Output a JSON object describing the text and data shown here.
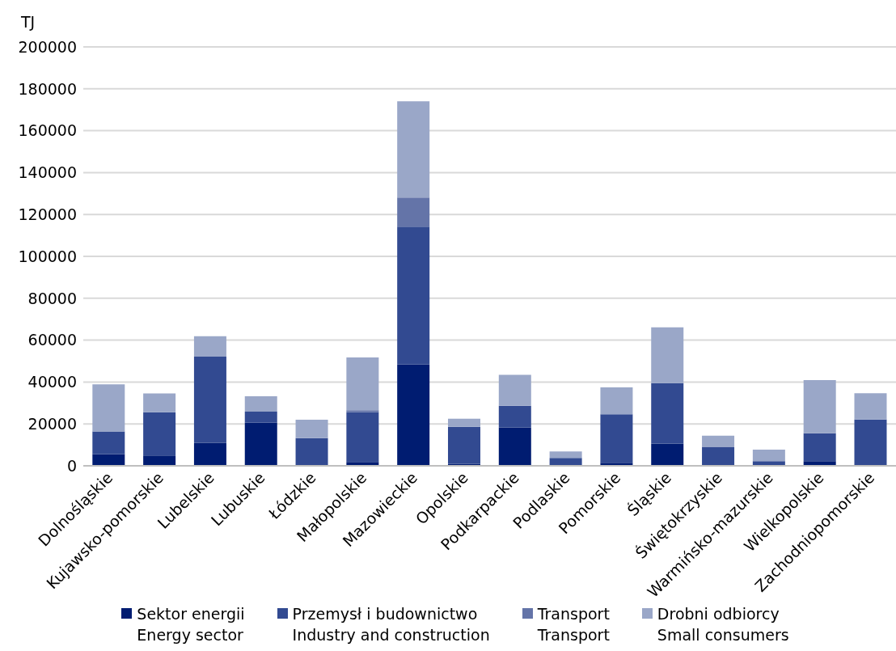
{
  "chart_data": {
    "type": "bar",
    "stacked": true,
    "ylabel": "TJ",
    "categories": [
      "Dolnośląskie",
      "Kujawsko-pomorskie",
      "Lubelskie",
      "Lubuskie",
      "Łódzkie",
      "Małopolskie",
      "Mazowieckie",
      "Opolskie",
      "Podkarpackie",
      "Podlaskie",
      "Pomorskie",
      "Śląskie",
      "Świętokrzyskie",
      "Warmińsko-mazurskie",
      "Wielkopolskie",
      "Zachodniopomorskie"
    ],
    "series": [
      {
        "name": "Sektor energii\nEnergy sector",
        "color": "#001c71",
        "values": [
          5600,
          4900,
          10900,
          20600,
          0,
          1800,
          48400,
          1000,
          18300,
          0,
          1400,
          10600,
          0,
          0,
          2200,
          0
        ]
      },
      {
        "name": "Przemysł i budownictwo\nIndustry and construction",
        "color": "#324a91",
        "values": [
          10800,
          20700,
          41200,
          5300,
          13200,
          23800,
          65800,
          17600,
          10400,
          3800,
          23200,
          28900,
          9100,
          2200,
          13300,
          22100
        ]
      },
      {
        "name": "Transport\nTransport",
        "color": "#6474a8",
        "values": [
          0,
          0,
          0,
          0,
          0,
          900,
          13900,
          0,
          0,
          0,
          0,
          0,
          0,
          0,
          0,
          0
        ]
      },
      {
        "name": "Drobni odbiorcy\nSmall consumers",
        "color": "#9aa7c8",
        "values": [
          22500,
          9000,
          9800,
          7300,
          8800,
          25200,
          45900,
          3900,
          14700,
          3100,
          12900,
          26600,
          5300,
          5500,
          25400,
          12600
        ]
      }
    ],
    "ylim": [
      0,
      200000
    ],
    "yticks": [
      0,
      20000,
      40000,
      60000,
      80000,
      100000,
      120000,
      140000,
      160000,
      180000,
      200000
    ],
    "grid": "y",
    "legend": "bottom"
  }
}
